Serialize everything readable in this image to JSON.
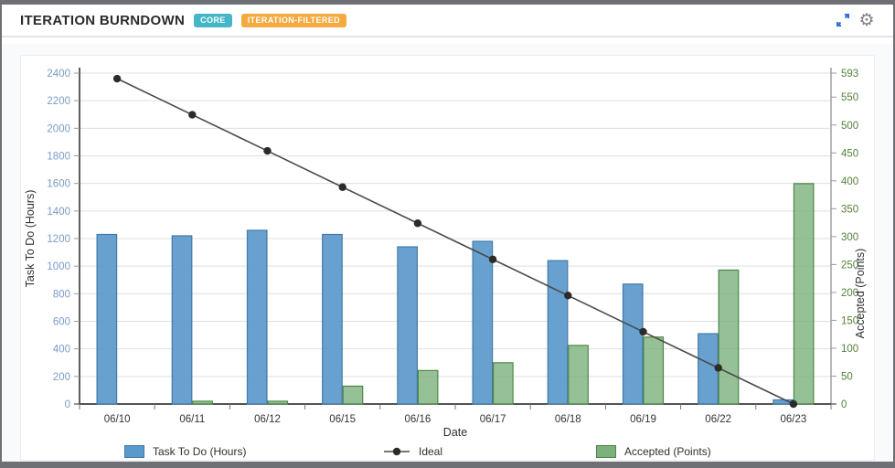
{
  "header": {
    "title": "ITERATION BURNDOWN",
    "badges": [
      {
        "label": "CORE",
        "color": "#45b6c8"
      },
      {
        "label": "ITERATION-FILTERED",
        "color": "#f5a93f"
      }
    ],
    "expand_icon": "expand-icon",
    "gear_icon": "⚙"
  },
  "chart_data": {
    "type": "bar",
    "title": "Iteration Burndown",
    "categories": [
      "06/10",
      "06/11",
      "06/12",
      "06/15",
      "06/16",
      "06/17",
      "06/18",
      "06/19",
      "06/22",
      "06/23"
    ],
    "xlabel": "Date",
    "series": [
      {
        "name": "Task To Do (Hours)",
        "type": "bar",
        "axis": "left",
        "color": "#5b99cc",
        "border": "#4279a5",
        "values": [
          1230,
          1220,
          1260,
          1230,
          1140,
          1180,
          1040,
          870,
          510,
          30
        ]
      },
      {
        "name": "Ideal",
        "type": "line",
        "axis": "left",
        "color": "#4a4a4a",
        "marker": "#2b2b2b",
        "values": [
          2360,
          2098,
          1836,
          1573,
          1311,
          1049,
          787,
          524,
          262,
          0
        ]
      },
      {
        "name": "Accepted (Points)",
        "type": "bar",
        "axis": "right",
        "color": "#7cb07c",
        "border": "#4c8746",
        "values": [
          0,
          5,
          5,
          32,
          60,
          74,
          105,
          120,
          240,
          395
        ]
      }
    ],
    "left_axis": {
      "label": "Task To Do (Hours)",
      "min": 0,
      "max": 2400,
      "tick_step": 200,
      "tick_color": "#7b9bc8"
    },
    "right_axis": {
      "label": "Accepted (Points)",
      "min": 0,
      "max": 593,
      "ticks": [
        0,
        50,
        100,
        150,
        200,
        250,
        300,
        350,
        400,
        450,
        500,
        550,
        593
      ],
      "tick_color": "#557f3a"
    },
    "grid": true,
    "legend_position": "bottom",
    "legend": [
      "Task To Do (Hours)",
      "Ideal",
      "Accepted (Points)"
    ]
  }
}
